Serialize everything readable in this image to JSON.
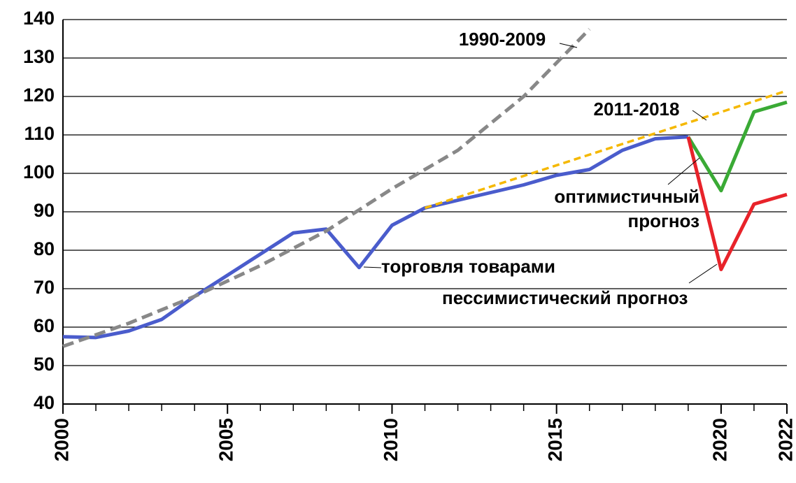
{
  "chart_data": {
    "type": "line",
    "xlim": [
      2000,
      2022
    ],
    "ylim": [
      40,
      140
    ],
    "xticks": [
      2000,
      2005,
      2010,
      2015,
      2020,
      2022
    ],
    "xticks_minor": [
      2000,
      2001,
      2002,
      2003,
      2004,
      2005,
      2006,
      2007,
      2008,
      2009,
      2010,
      2011,
      2012,
      2013,
      2014,
      2015,
      2016,
      2017,
      2018,
      2019,
      2020,
      2021,
      2022
    ],
    "yticks": [
      40,
      50,
      60,
      70,
      80,
      90,
      100,
      110,
      120,
      130,
      140
    ],
    "grid": true,
    "series": [
      {
        "color": "#888888",
        "dash": true,
        "x": [
          2000,
          2002,
          2004,
          2006,
          2008,
          2010,
          2012,
          2014,
          2016
        ],
        "values": [
          55,
          61,
          68,
          76,
          85,
          96,
          106,
          120,
          137.5
        ]
      },
      {
        "color": "#f5b800",
        "dash": true,
        "x": [
          2011,
          2022
        ],
        "values": [
          91,
          121.5
        ]
      },
      {
        "color": "#4a5ccc",
        "x": [
          2000,
          2001,
          2002,
          2003,
          2004,
          2005,
          2006,
          2007,
          2008,
          2009,
          2010,
          2011,
          2012,
          2013,
          2014,
          2015,
          2016,
          2017,
          2018,
          2019
        ],
        "values": [
          57.5,
          57.3,
          59,
          62,
          68,
          73.5,
          79,
          84.5,
          85.5,
          75.5,
          86.5,
          91,
          93,
          95,
          97,
          99.5,
          101,
          106,
          109,
          109.5
        ]
      },
      {
        "color": "#3aaa35",
        "x": [
          2019,
          2020,
          2021,
          2022
        ],
        "values": [
          109.5,
          95.5,
          116,
          118.5
        ]
      },
      {
        "color": "#e8232a",
        "x": [
          2019,
          2020,
          2021,
          2022
        ],
        "values": [
          109.5,
          75,
          92,
          94.5
        ]
      }
    ],
    "annotations": [
      {
        "text": "1990-2009"
      },
      {
        "text": "2011-2018"
      },
      {
        "text": "оптимистичный"
      },
      {
        "text": "прогноз"
      },
      {
        "text": "торговля товарами"
      },
      {
        "text": "пессимистический прогноз"
      }
    ]
  }
}
